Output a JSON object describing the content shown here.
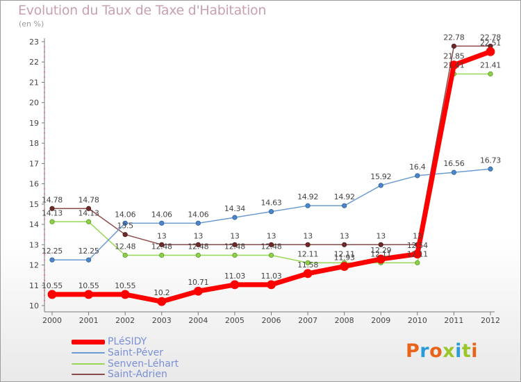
{
  "header": {
    "title": "Evolution du Taux de Taxe d'Habitation",
    "unit": "(en %)"
  },
  "logo": {
    "text": "Proxiti",
    "colors": [
      "#e8641b",
      "#2a9bd6",
      "#e8641b",
      "#9ac62b",
      "#2a9bd6",
      "#9ac62b",
      "#e8641b"
    ]
  },
  "chart_data": {
    "type": "line",
    "x": [
      2000,
      2001,
      2002,
      2003,
      2004,
      2005,
      2006,
      2007,
      2008,
      2009,
      2010,
      2011,
      2012
    ],
    "ylim": [
      10,
      23
    ],
    "yticks": [
      10,
      11,
      12,
      13,
      14,
      15,
      16,
      17,
      18,
      19,
      20,
      21,
      22,
      23
    ],
    "grid": false,
    "legend_position": "bottom-left",
    "series": [
      {
        "name": "PLéSIDY",
        "color": "#ff0000",
        "values": [
          10.55,
          10.55,
          10.55,
          10.2,
          10.71,
          11.03,
          11.03,
          11.58,
          11.93,
          12.29,
          12.54,
          21.85,
          22.51
        ],
        "labels": [
          "10.55",
          "10.55",
          "10.55",
          "10.2",
          "10.71",
          "11.03",
          "11.03",
          "11.58",
          "11.93",
          "12.29",
          "12.54",
          "21.85",
          "22.51"
        ]
      },
      {
        "name": "Saint-Péver",
        "color": "#6b9bd1",
        "values": [
          12.25,
          12.25,
          14.06,
          14.06,
          14.06,
          14.34,
          14.63,
          14.92,
          14.92,
          15.92,
          16.4,
          16.56,
          16.73
        ],
        "labels": [
          "12.25",
          "12.25",
          "14.06",
          "14.06",
          "14.06",
          "14.34",
          "14.63",
          "14.92",
          "14.92",
          "15.92",
          "16.4",
          "16.56",
          "16.73"
        ]
      },
      {
        "name": "Senven-Léhart",
        "color": "#96d854",
        "values": [
          14.13,
          14.13,
          12.48,
          12.48,
          12.48,
          12.48,
          12.48,
          12.11,
          12.11,
          12.11,
          12.11,
          21.41,
          21.41
        ],
        "labels": [
          "14.13",
          "14.13",
          "12.48",
          "12.48",
          "12.48",
          "12.48",
          "12.48",
          "12.11",
          "12.11",
          "12.11",
          "12.11",
          "21.41",
          "21.41"
        ]
      },
      {
        "name": "Saint-Adrien",
        "color": "#8b4a4a",
        "values": [
          14.78,
          14.78,
          13.5,
          13,
          13,
          13,
          13,
          13,
          13,
          13,
          13,
          22.78,
          22.78
        ],
        "labels": [
          "14.78",
          "14.78",
          "13.5",
          "13",
          "13",
          "13",
          "13",
          "13",
          "13",
          "13",
          "13",
          "22.78",
          "22.78"
        ]
      }
    ]
  }
}
